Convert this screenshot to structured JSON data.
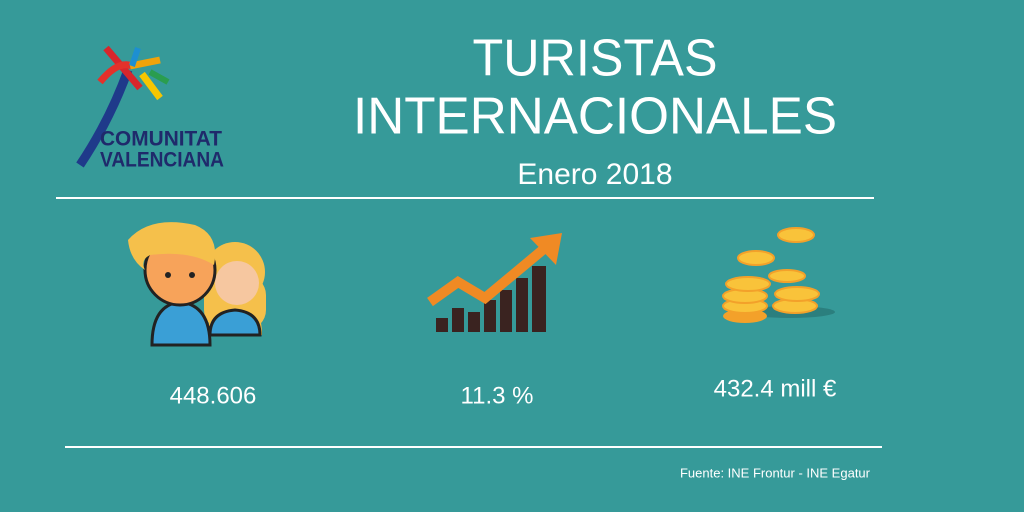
{
  "logo": {
    "line1": "COMUNITAT",
    "line2": "VALENCIANA"
  },
  "header": {
    "title_line1": "TURISTAS",
    "title_line2": "INTERNACIONALES",
    "subtitle": "Enero 2018"
  },
  "stats": [
    {
      "value": "448.606"
    },
    {
      "value": "11.3 %"
    },
    {
      "value": "432.4 mill €"
    }
  ],
  "footer": {
    "source": "Fuente: INE Frontur - INE Egatur"
  }
}
